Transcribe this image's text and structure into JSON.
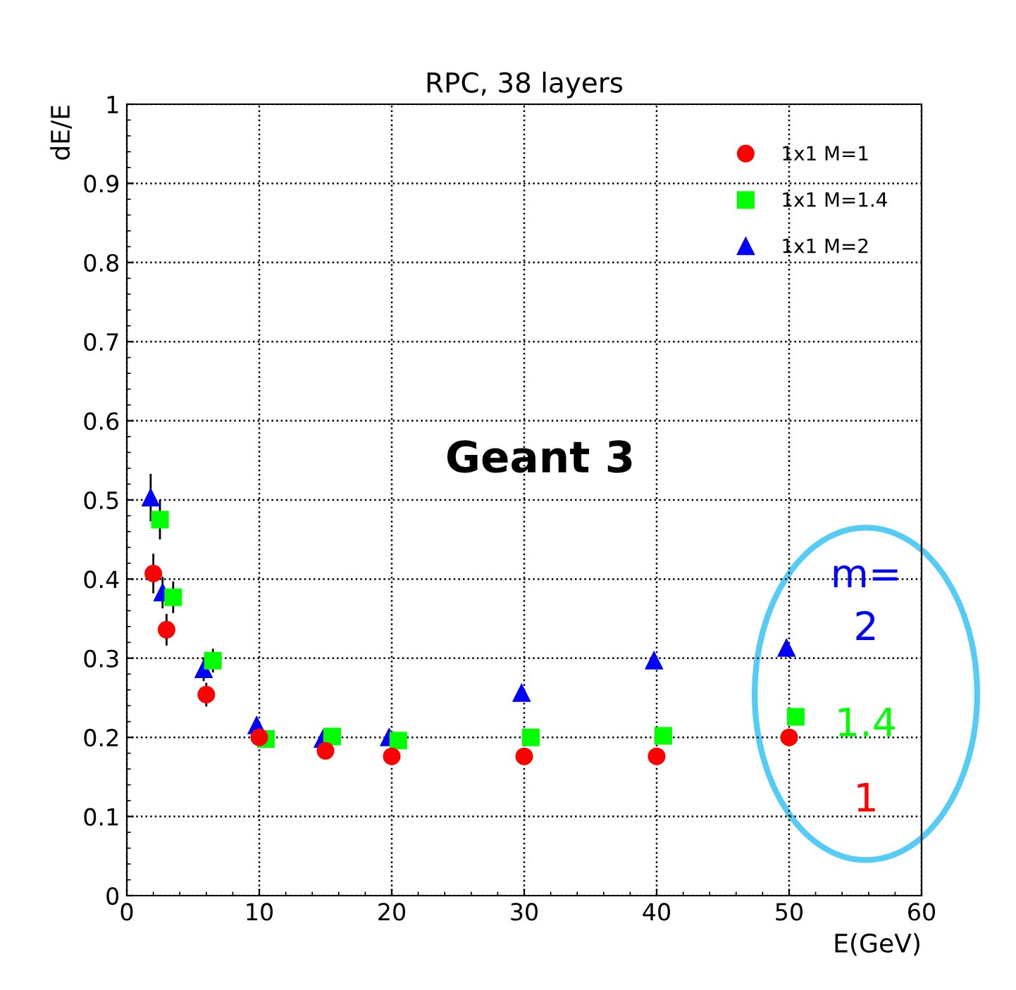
{
  "chart_data": {
    "type": "scatter",
    "title": "RPC, 38 layers",
    "xlabel": "E(GeV)",
    "ylabel": "dE/E",
    "xlim": [
      0,
      60
    ],
    "xticks": [
      0,
      10,
      20,
      30,
      40,
      50,
      60
    ],
    "ylim": [
      0,
      1
    ],
    "yticks": [
      0,
      0.1,
      0.2,
      0.3,
      0.4,
      0.5,
      0.6,
      0.7,
      0.8,
      0.9,
      1
    ],
    "grid": true,
    "legend": "top right",
    "series": [
      {
        "name": "1x1 M=1",
        "color": "#ff0000",
        "marker": "circle",
        "x": [
          2,
          3,
          6,
          10,
          15,
          20,
          30,
          40,
          50
        ],
        "values": [
          0.407,
          0.336,
          0.254,
          0.2,
          0.183,
          0.176,
          0.176,
          0.176,
          0.2
        ],
        "errors": [
          0.025,
          0.02,
          0.015,
          null,
          null,
          null,
          null,
          null,
          null
        ]
      },
      {
        "name": "1x1 M=1.4",
        "color": "#00ff00",
        "marker": "square",
        "x": [
          2.5,
          3.5,
          6.5,
          10.5,
          15.5,
          20.5,
          30.5,
          40.5,
          50.5
        ],
        "values": [
          0.475,
          0.377,
          0.297,
          0.198,
          0.201,
          0.196,
          0.2,
          0.202,
          0.226
        ],
        "errors": [
          0.025,
          0.02,
          0.015,
          null,
          null,
          null,
          null,
          null,
          null
        ]
      },
      {
        "name": "1x1 M=2",
        "color": "#0000ff",
        "marker": "triangle",
        "x": [
          1.8,
          2.7,
          5.8,
          9.8,
          14.8,
          19.8,
          29.8,
          39.8,
          49.8
        ],
        "values": [
          0.503,
          0.383,
          0.286,
          0.215,
          0.198,
          0.2,
          0.256,
          0.297,
          0.313
        ],
        "errors": [
          0.03,
          0.02,
          0.015,
          null,
          null,
          null,
          null,
          null,
          null
        ]
      }
    ],
    "annotations": [
      "Geant 3",
      "m=\n2",
      "1.4",
      "1"
    ]
  }
}
